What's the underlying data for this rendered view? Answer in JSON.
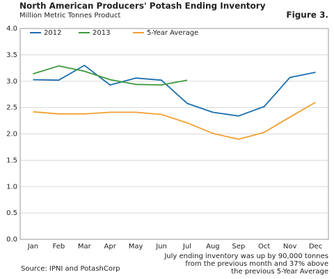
{
  "chart_data": {
    "type": "line",
    "title": "North American Producers' Potash Ending Inventory",
    "subtitle": "Million Metric Tonnes Product",
    "figure_label": "Figure 3.",
    "annotation": [
      "July ending inventory was up by 90,000 tonnes",
      "from the previous month and 37% above",
      "the previous 5-Year Average"
    ],
    "source": "Source: IPNI and PotashCorp",
    "categories": [
      "Jan",
      "Feb",
      "Mar",
      "Apr",
      "May",
      "Jun",
      "Jul",
      "Aug",
      "Sep",
      "Oct",
      "Nov",
      "Dec"
    ],
    "series": [
      {
        "name": "2012",
        "color": "#1b6fae",
        "values": [
          3.03,
          3.02,
          3.3,
          2.93,
          3.06,
          3.02,
          2.58,
          2.41,
          2.34,
          2.52,
          3.07,
          3.17
        ]
      },
      {
        "name": "2013",
        "color": "#3c9a3c",
        "values": [
          3.14,
          3.29,
          3.19,
          3.03,
          2.94,
          2.93,
          3.02,
          null,
          null,
          null,
          null,
          null
        ]
      },
      {
        "name": "5-Year Average",
        "color": "#f0a030",
        "values": [
          2.42,
          2.38,
          2.38,
          2.41,
          2.41,
          2.37,
          2.21,
          2.01,
          1.9,
          2.03,
          2.32,
          2.6
        ]
      }
    ],
    "ylim": [
      0,
      4
    ],
    "yticks": [
      {
        "value": 0,
        "label": "0.0"
      },
      {
        "value": 0.5,
        "label": "0.5"
      },
      {
        "value": 1,
        "label": "1.0"
      },
      {
        "value": 1.5,
        "label": "1.5"
      },
      {
        "value": 2,
        "label": "2.0"
      },
      {
        "value": 2.5,
        "label": "2.5"
      },
      {
        "value": 3,
        "label": "3.0"
      },
      {
        "value": 3.5,
        "label": "3.5"
      },
      {
        "value": 4,
        "label": "4.0"
      }
    ],
    "grid": true,
    "legend": "top-left"
  }
}
